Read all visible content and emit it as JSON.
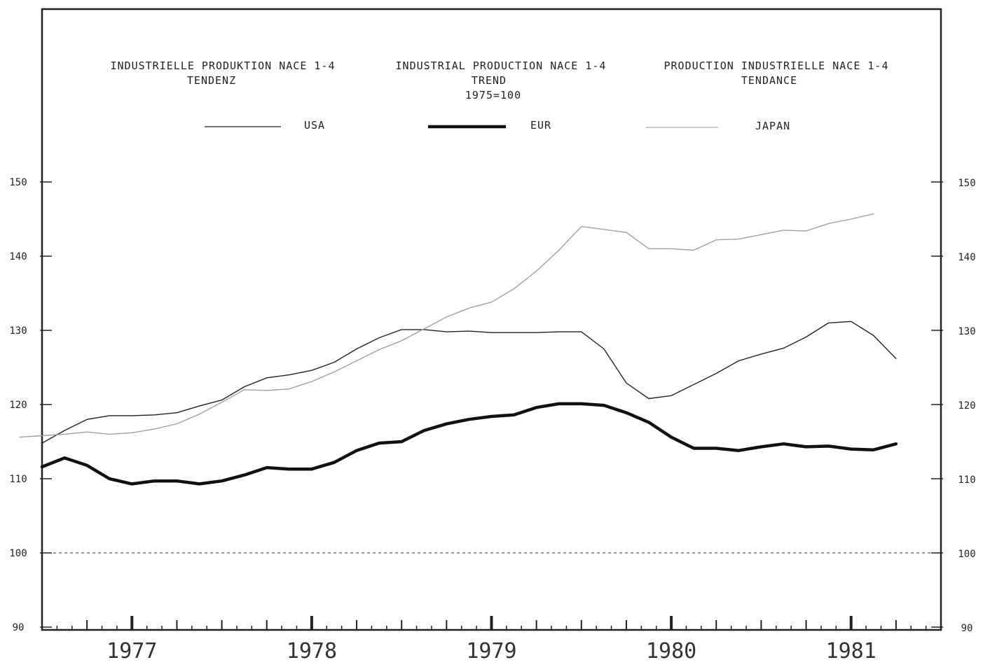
{
  "chart_data": {
    "type": "line",
    "header": {
      "de": {
        "title": "INDUSTRIELLE PRODUKTION NACE 1-4",
        "subtitle": "TENDENZ"
      },
      "en": {
        "title": "INDUSTRIAL PRODUCTION NACE 1-4",
        "subtitle": "TREND",
        "base": "1975=100"
      },
      "fr": {
        "title": "PRODUCTION INDUSTRIELLE NACE 1-4",
        "subtitle": "TENDANCE"
      }
    },
    "legend": [
      {
        "name": "USA",
        "style": "thin",
        "color": "#222222"
      },
      {
        "name": "EUR",
        "style": "bold",
        "color": "#111111"
      },
      {
        "name": "JAPAN",
        "style": "light",
        "color": "#999999"
      }
    ],
    "y_ticks": [
      "90",
      "100",
      "110",
      "120",
      "130",
      "140",
      "150"
    ],
    "x_tick_labels": [
      "1977",
      "1978",
      "1979",
      "1980",
      "1981"
    ],
    "ylim": [
      90,
      160
    ],
    "xlim": [
      1976.5,
      1981.5
    ],
    "reference_line": 100,
    "series": [
      {
        "name": "USA",
        "x": [
          1976.5,
          1976.625,
          1976.75,
          1976.875,
          1977.0,
          1977.125,
          1977.25,
          1977.375,
          1977.5,
          1977.625,
          1977.75,
          1977.875,
          1978.0,
          1978.125,
          1978.25,
          1978.375,
          1978.5,
          1978.625,
          1978.75,
          1978.875,
          1979.0,
          1979.125,
          1979.25,
          1979.375,
          1979.5,
          1979.625,
          1979.75,
          1979.875,
          1980.0,
          1980.125,
          1980.25,
          1980.375,
          1980.5,
          1980.625,
          1980.75,
          1980.875,
          1981.0,
          1981.125,
          1981.25
        ],
        "values": [
          114.8,
          116.5,
          118.0,
          118.5,
          118.5,
          118.6,
          118.9,
          119.8,
          120.6,
          122.4,
          123.6,
          124.0,
          124.6,
          125.7,
          127.5,
          129.0,
          130.1,
          130.1,
          129.8,
          129.9,
          129.7,
          129.7,
          129.7,
          129.8,
          129.8,
          127.5,
          122.9,
          120.8,
          121.2,
          122.7,
          124.2,
          125.9,
          126.8,
          127.6,
          129.1,
          131.0,
          131.2,
          129.3,
          126.2
        ]
      },
      {
        "name": "EUR",
        "x": [
          1976.5,
          1976.625,
          1976.75,
          1976.875,
          1977.0,
          1977.125,
          1977.25,
          1977.375,
          1977.5,
          1977.625,
          1977.75,
          1977.875,
          1978.0,
          1978.125,
          1978.25,
          1978.375,
          1978.5,
          1978.625,
          1978.75,
          1978.875,
          1979.0,
          1979.125,
          1979.25,
          1979.375,
          1979.5,
          1979.625,
          1979.75,
          1979.875,
          1980.0,
          1980.125,
          1980.25,
          1980.375,
          1980.5,
          1980.625,
          1980.75,
          1980.875,
          1981.0,
          1981.125,
          1981.25
        ],
        "values": [
          111.6,
          112.8,
          111.8,
          110.0,
          109.3,
          109.7,
          109.7,
          109.3,
          109.7,
          110.5,
          111.5,
          111.3,
          111.3,
          112.2,
          113.8,
          114.8,
          115.0,
          116.5,
          117.4,
          118.0,
          118.4,
          118.6,
          119.6,
          120.1,
          120.1,
          119.9,
          118.9,
          117.6,
          115.6,
          114.1,
          114.1,
          113.8,
          114.3,
          114.7,
          114.3,
          114.4,
          114.0,
          113.9,
          114.7
        ]
      },
      {
        "name": "JAPAN",
        "x": [
          1976.375,
          1976.5,
          1976.625,
          1976.75,
          1976.875,
          1977.0,
          1977.125,
          1977.25,
          1977.375,
          1977.5,
          1977.625,
          1977.75,
          1977.875,
          1978.0,
          1978.125,
          1978.25,
          1978.375,
          1978.5,
          1978.625,
          1978.75,
          1978.875,
          1979.0,
          1979.125,
          1979.25,
          1979.375,
          1979.5,
          1979.625,
          1979.75,
          1979.875,
          1980.0,
          1980.125,
          1980.25,
          1980.375,
          1980.5,
          1980.625,
          1980.75,
          1980.875,
          1981.0,
          1981.125
        ],
        "values": [
          115.6,
          115.8,
          116.0,
          116.3,
          116.0,
          116.2,
          116.7,
          117.4,
          118.7,
          120.3,
          122.0,
          121.9,
          122.1,
          123.1,
          124.4,
          125.9,
          127.4,
          128.6,
          130.2,
          131.8,
          133.0,
          133.8,
          135.6,
          138.0,
          140.8,
          144.0,
          143.6,
          143.2,
          141.0,
          141.0,
          140.8,
          142.2,
          142.3,
          142.9,
          143.5,
          143.4,
          144.4,
          145.0,
          145.7
        ]
      }
    ]
  }
}
